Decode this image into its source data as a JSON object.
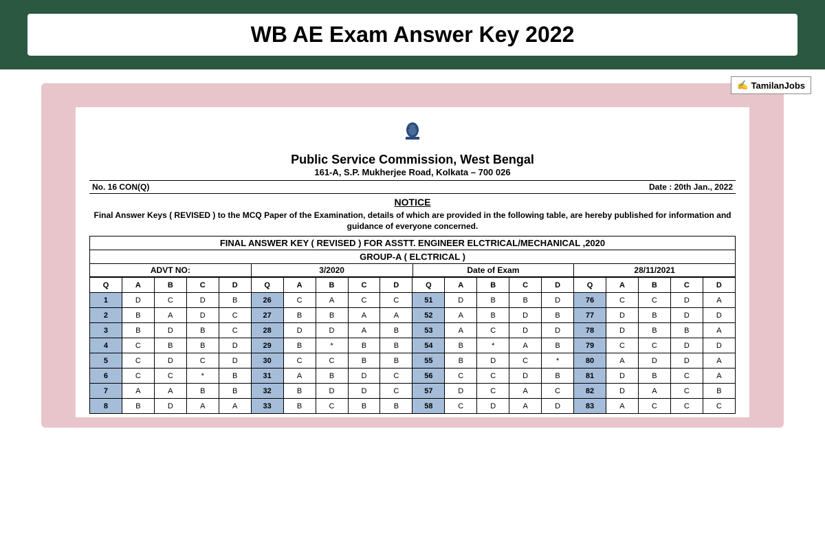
{
  "header": {
    "title": "WB AE Exam Answer Key 2022"
  },
  "badge": {
    "text": "TamilanJobs"
  },
  "document": {
    "org_name": "Public Service Commission, West Bengal",
    "address": "161-A, S.P. Mukherjee Road, Kolkata – 700 026",
    "ref_no": "No. 16 CON(Q)",
    "date": "Date : 20th Jan., 2022",
    "notice_label": "NOTICE",
    "notice_text": "Final Answer Keys ( REVISED ) to the MCQ Paper of the Examination, details of which are provided in the following table, are hereby published for information and guidance of everyone concerned.",
    "table_title": "FINAL ANSWER KEY ( REVISED )  FOR ASSTT. ENGINEER ELCTRICAL/MECHANICAL ,2020",
    "group_title": "GROUP-A ( ELCTRICAL )",
    "info": {
      "advt_label": "ADVT NO:",
      "advt_value": "3/2020",
      "exam_label": "Date of Exam",
      "exam_value": "28/11/2021"
    }
  },
  "table": {
    "headers": [
      "Q",
      "A",
      "B",
      "C",
      "D",
      "Q",
      "A",
      "B",
      "C",
      "D",
      "Q",
      "A",
      "B",
      "C",
      "D",
      "Q",
      "A",
      "B",
      "C",
      "D"
    ],
    "rows": [
      [
        "1",
        "D",
        "C",
        "D",
        "B",
        "26",
        "C",
        "A",
        "C",
        "C",
        "51",
        "D",
        "B",
        "B",
        "D",
        "76",
        "C",
        "C",
        "D",
        "A"
      ],
      [
        "2",
        "B",
        "A",
        "D",
        "C",
        "27",
        "B",
        "B",
        "A",
        "A",
        "52",
        "A",
        "B",
        "D",
        "B",
        "77",
        "D",
        "B",
        "D",
        "D"
      ],
      [
        "3",
        "B",
        "D",
        "B",
        "C",
        "28",
        "D",
        "D",
        "A",
        "B",
        "53",
        "A",
        "C",
        "D",
        "D",
        "78",
        "D",
        "B",
        "B",
        "A"
      ],
      [
        "4",
        "C",
        "B",
        "B",
        "D",
        "29",
        "B",
        "*",
        "B",
        "B",
        "54",
        "B",
        "*",
        "A",
        "B",
        "79",
        "C",
        "C",
        "D",
        "D"
      ],
      [
        "5",
        "C",
        "D",
        "C",
        "D",
        "30",
        "C",
        "C",
        "B",
        "B",
        "55",
        "B",
        "D",
        "C",
        "*",
        "80",
        "A",
        "D",
        "D",
        "A"
      ],
      [
        "6",
        "C",
        "C",
        "*",
        "B",
        "31",
        "A",
        "B",
        "D",
        "C",
        "56",
        "C",
        "C",
        "D",
        "B",
        "81",
        "D",
        "B",
        "C",
        "A"
      ],
      [
        "7",
        "A",
        "A",
        "B",
        "B",
        "32",
        "B",
        "D",
        "D",
        "C",
        "57",
        "D",
        "C",
        "A",
        "C",
        "82",
        "D",
        "A",
        "C",
        "B"
      ],
      [
        "8",
        "B",
        "D",
        "A",
        "A",
        "33",
        "B",
        "C",
        "B",
        "B",
        "58",
        "C",
        "D",
        "A",
        "D",
        "83",
        "A",
        "C",
        "C",
        "C"
      ]
    ],
    "q_col_bg": "#a6bdd9",
    "cell_bg": "#ffffff"
  }
}
